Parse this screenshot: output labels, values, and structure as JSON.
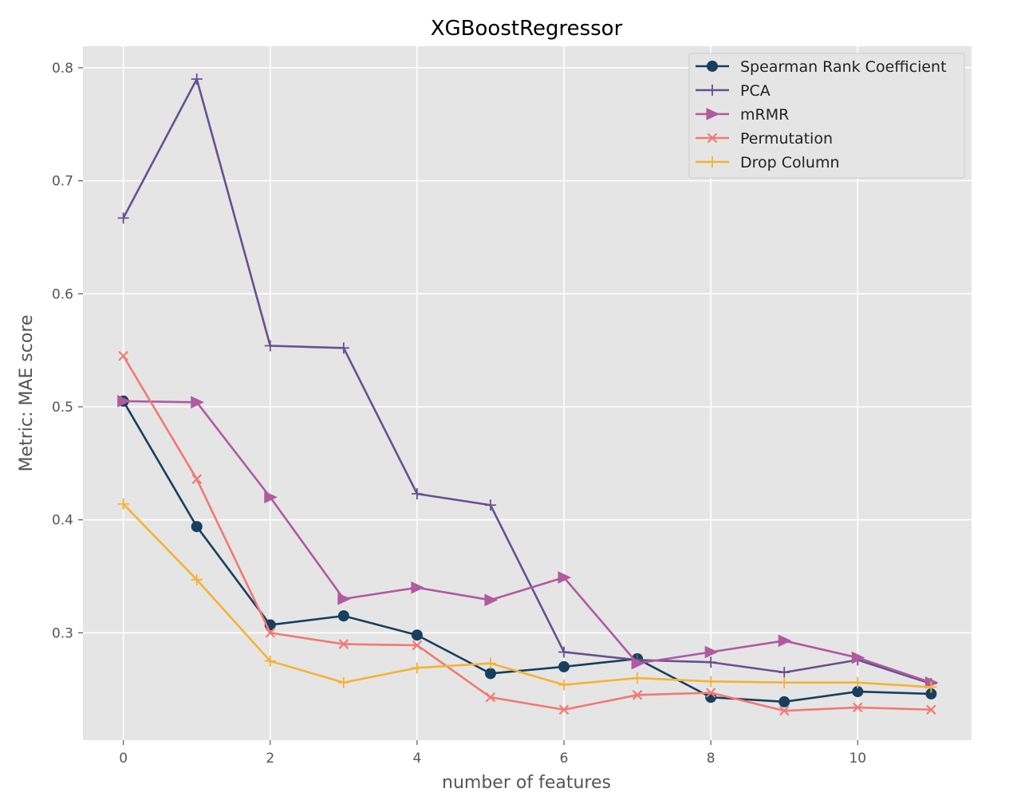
{
  "chart_data": {
    "type": "line",
    "title": "XGBoostRegressor",
    "xlabel": "number of features",
    "ylabel": "Metric: MAE score",
    "x": [
      0,
      1,
      2,
      3,
      4,
      5,
      6,
      7,
      8,
      9,
      10,
      11
    ],
    "xlim": [
      -0.55,
      11.55
    ],
    "ylim": [
      0.205,
      0.819
    ],
    "xticks": [
      0,
      2,
      4,
      6,
      8,
      10
    ],
    "yticks": [
      0.3,
      0.4,
      0.5,
      0.6,
      0.7,
      0.8
    ],
    "xtick_labels": [
      "0",
      "2",
      "4",
      "6",
      "8",
      "10"
    ],
    "ytick_labels": [
      "0.3",
      "0.4",
      "0.5",
      "0.6",
      "0.7",
      "0.8"
    ],
    "grid": true,
    "legend_position": "top-right",
    "background": "#e5e5e5",
    "series": [
      {
        "name": "Spearman Rank Coefficient",
        "color": "#173f5f",
        "marker": "circle",
        "values": [
          0.505,
          0.394,
          0.307,
          0.315,
          0.298,
          0.264,
          0.27,
          0.277,
          0.243,
          0.239,
          0.248,
          0.246
        ]
      },
      {
        "name": "PCA",
        "color": "#665191",
        "marker": "plus",
        "values": [
          0.667,
          0.79,
          0.554,
          0.552,
          0.423,
          0.413,
          0.283,
          0.276,
          0.274,
          0.265,
          0.276,
          0.255
        ]
      },
      {
        "name": "mRMR",
        "color": "#b05aa0",
        "marker": "triangle-right",
        "values": [
          0.505,
          0.504,
          0.42,
          0.33,
          0.34,
          0.329,
          0.349,
          0.273,
          0.283,
          0.293,
          0.278,
          0.256
        ]
      },
      {
        "name": "Permutation",
        "color": "#f07a73",
        "marker": "x",
        "values": [
          0.545,
          0.436,
          0.3,
          0.29,
          0.289,
          0.243,
          0.232,
          0.245,
          0.247,
          0.231,
          0.234,
          0.232
        ]
      },
      {
        "name": "Drop Column",
        "color": "#f5b234",
        "marker": "plus",
        "values": [
          0.414,
          0.347,
          0.275,
          0.256,
          0.269,
          0.273,
          0.254,
          0.26,
          0.257,
          0.256,
          0.256,
          0.252
        ]
      }
    ]
  }
}
